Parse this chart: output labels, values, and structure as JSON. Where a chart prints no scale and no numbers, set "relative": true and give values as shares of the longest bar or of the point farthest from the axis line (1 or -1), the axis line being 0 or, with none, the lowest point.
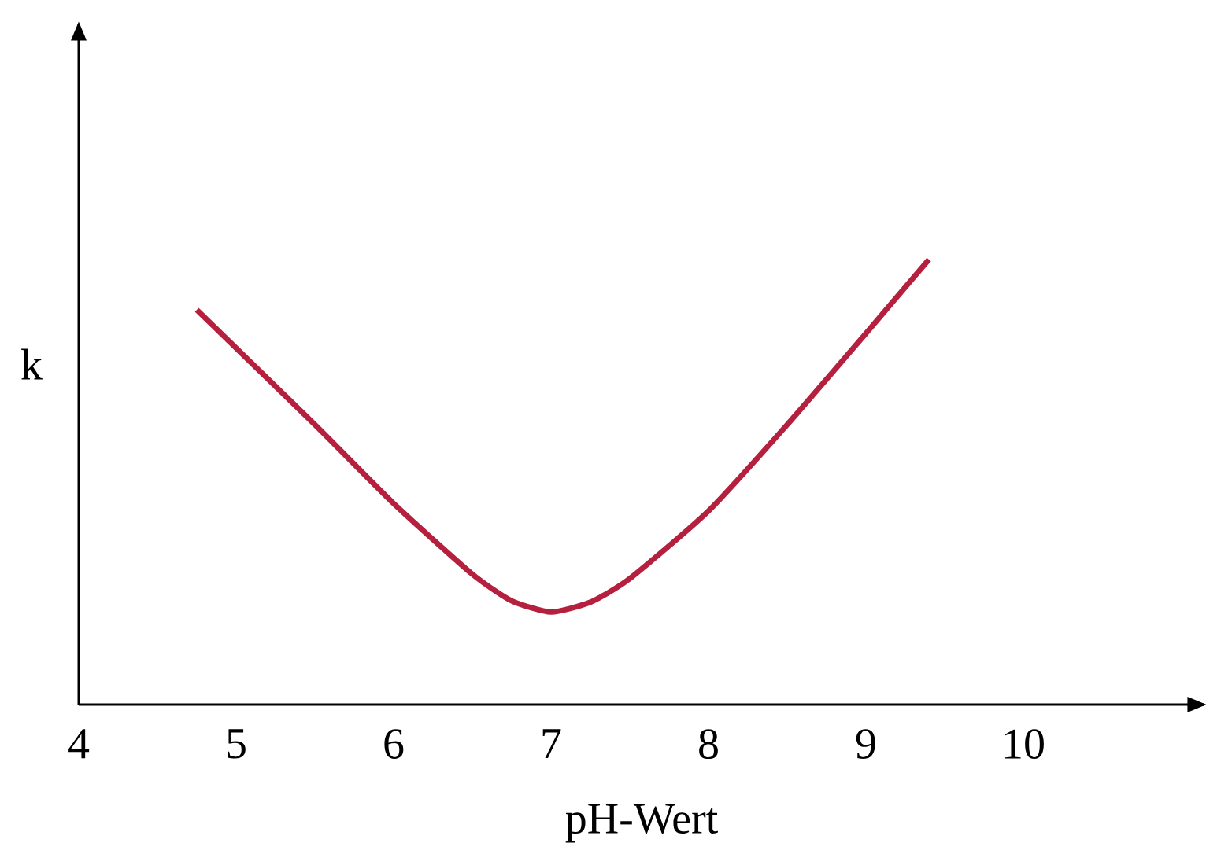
{
  "chart_data": {
    "type": "line",
    "relative": true,
    "xlabel": "pH-Wert",
    "ylabel": "k",
    "x": [
      4.75,
      5.5,
      6,
      6.5,
      6.75,
      7,
      7.25,
      7.5,
      8,
      8.5,
      9,
      9.4
    ],
    "series": [
      {
        "color": "#b5203e",
        "values": [
          0.887,
          0.629,
          0.452,
          0.293,
          0.233,
          0.208,
          0.23,
          0.283,
          0.435,
          0.629,
          0.834,
          1
        ]
      }
    ],
    "xlim": [
      4,
      11.15
    ],
    "xticks": [
      4,
      5,
      6,
      7,
      8,
      9,
      10
    ],
    "grid": false,
    "marker": "none",
    "line_style": "solid"
  }
}
